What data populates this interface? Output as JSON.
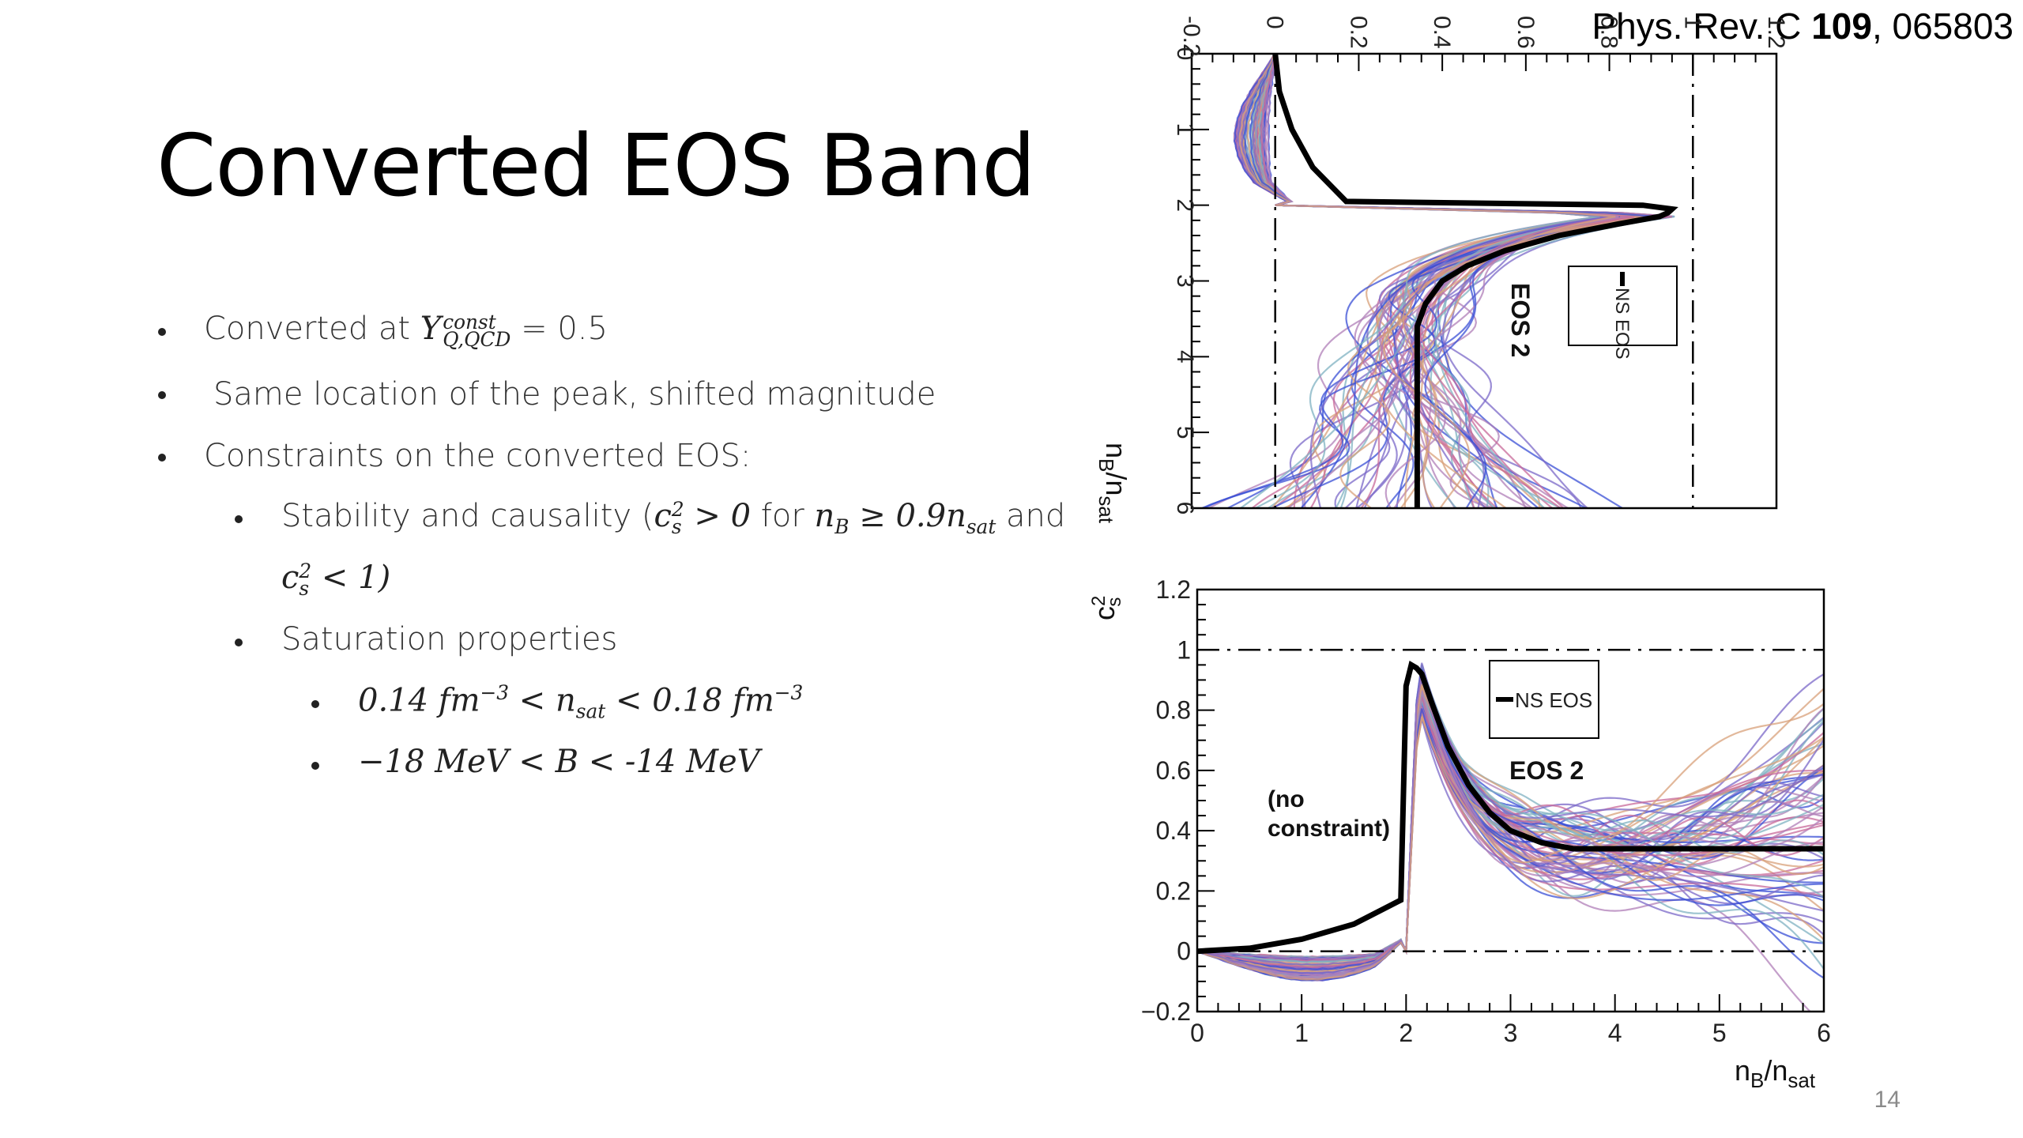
{
  "slide": {
    "title": "Converted EOS Band",
    "citation_journal": "Phys. Rev. C ",
    "citation_volume": "109",
    "citation_article": ", 065803",
    "page_number": "14"
  },
  "bullets": {
    "b1_text": "Converted at ",
    "b1_math_base": "Y",
    "b1_math_sup": "const",
    "b1_math_sub": "Q,QCD",
    "b1_value": " = 0.5",
    "b2_text": "Same location of the peak, shifted magnitude",
    "b3_text": "Constraints on the converted EOS:",
    "b4_text": "Stability and causality (",
    "b4_cs": "c",
    "b4_cs_sub": "s",
    "b4_cs_sup": "2",
    "b4_gt": " > 0",
    "b4_for": " for ",
    "b4_nb": "n",
    "b4_nb_sub": "B",
    "b4_geq": " ≥ 0.9",
    "b4_nsat": "n",
    "b4_nsat_sub": "sat",
    "b4_and": " and",
    "b4_line2_cs": "c",
    "b4_line2_sub": "s",
    "b4_line2_sup": "2",
    "b4_line2_rest": " < 1)",
    "b5_text": "Saturation properties",
    "b6_left": "0.14 ",
    "b6_fm1": "fm",
    "b6_exp1": "−3",
    "b6_lt1": " < ",
    "b6_n": "n",
    "b6_nsub": "sat",
    "b6_lt2": " < 0.18 ",
    "b6_fm2": "fm",
    "b6_exp2": "−3",
    "b7_left": "−18 MeV < B < -14 ",
    "b7_unit": "MeV"
  },
  "chart_data": [
    {
      "type": "line",
      "orientation": "rotated 90° (x axis vertical, y axis horizontal)",
      "x_axis_label_base": "n",
      "x_axis_label_sub1": "B",
      "x_axis_label_mid": "/n",
      "x_axis_label_sub2": "sat",
      "xlim": [
        0,
        6
      ],
      "ylim": [
        -0.2,
        1.2
      ],
      "x_ticks": [
        "0",
        "1",
        "2",
        "3",
        "4",
        "5",
        "6"
      ],
      "y_ticks": [
        "-0.2",
        "0",
        "0.2",
        "0.4",
        "0.6",
        "0.8",
        "1",
        "1.2"
      ],
      "reference_lines": [
        0,
        1
      ],
      "annotation": "EOS 2",
      "legend": [
        "NS EOS"
      ],
      "series": [
        {
          "name": "NS EOS",
          "color": "#000000",
          "x": [
            0,
            0.5,
            1.0,
            1.5,
            1.95,
            2.0,
            2.05,
            2.1,
            2.15,
            2.25,
            2.4,
            2.6,
            2.8,
            3.0,
            3.3,
            3.6,
            4.0,
            5.0,
            6.0
          ],
          "y": [
            0.0,
            0.01,
            0.04,
            0.09,
            0.17,
            0.88,
            0.95,
            0.94,
            0.92,
            0.82,
            0.68,
            0.55,
            0.46,
            0.4,
            0.36,
            0.34,
            0.34,
            0.34,
            0.34
          ]
        }
      ],
      "band_color_hints": [
        "#7b68c8",
        "#3a4fd6",
        "#b07fb8",
        "#d8a07a",
        "#7fb2c2",
        "#c86a9a"
      ]
    },
    {
      "type": "line",
      "xlabel_base": "n",
      "xlabel_sub1": "B",
      "xlabel_mid": "/n",
      "xlabel_sub2": "sat",
      "ylabel_base": "c",
      "ylabel_sup": "2",
      "ylabel_sub": "s",
      "xlim": [
        0,
        6
      ],
      "ylim": [
        -0.2,
        1.2
      ],
      "x_ticks": [
        "0",
        "1",
        "2",
        "3",
        "4",
        "5",
        "6"
      ],
      "y_ticks": [
        "−0.2",
        "0",
        "0.2",
        "0.4",
        "0.6",
        "0.8",
        "1",
        "1.2"
      ],
      "reference_lines": [
        0,
        1
      ],
      "annotations": [
        "EOS 2",
        "(no",
        "constraint)"
      ],
      "legend": [
        "NS EOS"
      ],
      "series": [
        {
          "name": "NS EOS",
          "color": "#000000",
          "x": [
            0,
            0.5,
            1.0,
            1.5,
            1.95,
            2.0,
            2.05,
            2.1,
            2.15,
            2.25,
            2.4,
            2.6,
            2.8,
            3.0,
            3.3,
            3.6,
            4.0,
            5.0,
            6.0
          ],
          "y": [
            0.0,
            0.01,
            0.04,
            0.09,
            0.17,
            0.88,
            0.95,
            0.94,
            0.92,
            0.82,
            0.68,
            0.55,
            0.46,
            0.4,
            0.36,
            0.34,
            0.34,
            0.34,
            0.34
          ]
        }
      ],
      "band_color_hints": [
        "#7b68c8",
        "#3a4fd6",
        "#b07fb8",
        "#d8a07a",
        "#7fb2c2",
        "#c86a9a"
      ]
    }
  ]
}
